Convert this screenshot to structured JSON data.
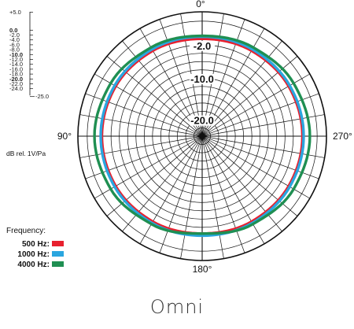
{
  "chart_data": {
    "type": "polar",
    "title": "Omni",
    "unit_label": "dB rel. 1V/Pa",
    "angle_labels": [
      {
        "text": "0°",
        "angle": 0
      },
      {
        "text": "90°",
        "angle": 90
      },
      {
        "text": "180°",
        "angle": 180
      },
      {
        "text": "270°",
        "angle": 270
      }
    ],
    "ring_labels": [
      "-2.0",
      "-10.0",
      "-20.0"
    ],
    "scale_labels": [
      "+5.0",
      "0.0",
      "-2.0",
      "-4.0",
      "-6.0",
      "-8.0",
      "-10.0",
      "-12.0",
      "-14.0",
      "-16.0",
      "-18.0",
      "-20.0",
      "-22.0",
      "-24.0",
      "-25.0"
    ],
    "scale_bold": [
      "0.0",
      "-10.0",
      "-20.0"
    ],
    "rlim": [
      -25,
      5
    ],
    "legend": {
      "title": "Frequency:"
    },
    "series": [
      {
        "name": "500 Hz:",
        "color": "#e8202e",
        "angles": [
          0,
          30,
          60,
          90,
          120,
          150,
          180,
          210,
          240,
          270,
          300,
          330
        ],
        "values": [
          -1.5,
          -1.2,
          -0.9,
          -0.8,
          -0.9,
          -1.2,
          -1.5,
          -1.2,
          -0.9,
          -0.8,
          -0.9,
          -1.2
        ]
      },
      {
        "name": "1000 Hz:",
        "color": "#2aa6df",
        "angles": [
          0,
          30,
          60,
          90,
          120,
          150,
          180,
          210,
          240,
          270,
          300,
          330
        ],
        "values": [
          -1.0,
          -0.8,
          -0.6,
          -0.5,
          -0.6,
          -0.8,
          -1.0,
          -0.8,
          -0.6,
          -0.5,
          -0.6,
          -0.8
        ]
      },
      {
        "name": "4000 Hz:",
        "color": "#1f8f52",
        "angles": [
          0,
          30,
          60,
          90,
          120,
          150,
          180,
          210,
          240,
          270,
          300,
          330
        ],
        "values": [
          -0.8,
          -0.3,
          0.5,
          1.0,
          0.5,
          -0.5,
          -1.5,
          -0.5,
          0.5,
          1.0,
          0.5,
          -0.3
        ]
      }
    ]
  }
}
